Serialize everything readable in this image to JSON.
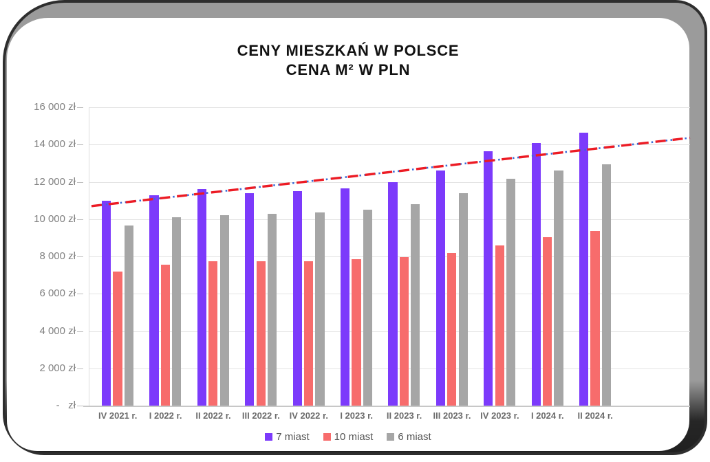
{
  "page": {
    "title_line1": "CENY MIESZKAŃ W POLSCE",
    "title_line2": "CENA M² W PLN"
  },
  "chart_data": {
    "type": "bar",
    "title": "CENY MIESZKAŃ W POLSCE",
    "subtitle": "CENA M² W PLN",
    "currency_unit": "zł",
    "categories": [
      "IV 2021 r.",
      "I 2022 r.",
      "II 2022 r.",
      "III 2022 r.",
      "IV 2022 r.",
      "I 2023 r.",
      "II 2023 r.",
      "III 2023 r.",
      "IV 2023 r.",
      "I 2024 r.",
      "II 2024 r."
    ],
    "series": [
      {
        "name": "7 miast",
        "color": "#7c3afb",
        "values": [
          11000,
          11300,
          11600,
          11400,
          11500,
          11650,
          12000,
          12600,
          13650,
          14100,
          14650
        ]
      },
      {
        "name": "10 miast",
        "color": "#f76c6c",
        "values": [
          7200,
          7550,
          7750,
          7750,
          7750,
          7870,
          7950,
          8200,
          8600,
          9050,
          9350
        ]
      },
      {
        "name": "6 miast",
        "color": "#a6a6a6",
        "values": [
          9650,
          10100,
          10200,
          10280,
          10350,
          10500,
          10800,
          11400,
          12150,
          12600,
          12950
        ]
      }
    ],
    "y_axis": {
      "min": 0,
      "max": 16000,
      "step": 2000,
      "grid": true,
      "tick_labels": [
        "16 000 zł",
        "14 000 zł",
        "12 000 zł",
        "10 000 zł",
        "8 000 zł",
        "6 000 zł",
        "4 000 zł",
        "2 000 zł",
        "-   zł"
      ]
    },
    "trendline": {
      "type": "linear",
      "start_value": 10700,
      "end_value": 14360,
      "dash_color": "#ec1b24",
      "dot_color": "#3a6bd8",
      "extends_past_last_category": true
    },
    "legend": {
      "position": "bottom",
      "items": [
        "7 miast",
        "10 miast",
        "6 miast"
      ]
    }
  }
}
